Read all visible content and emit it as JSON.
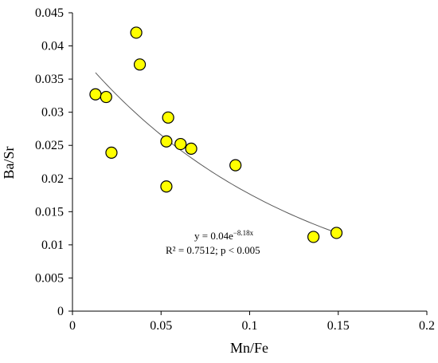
{
  "chart_data": {
    "type": "scatter",
    "xlabel": "Mn/Fe",
    "ylabel": "Ba/Sr",
    "xlim": [
      0,
      0.2
    ],
    "ylim": [
      0,
      0.045
    ],
    "x_ticks": [
      "0",
      "0.05",
      "0.1",
      "0.15",
      "0.2"
    ],
    "y_ticks": [
      "0",
      "0.005",
      "0.01",
      "0.015",
      "0.02",
      "0.025",
      "0.03",
      "0.035",
      "0.04",
      "0.045"
    ],
    "grid": false,
    "legend": "none",
    "points": [
      {
        "x": 0.036,
        "y": 0.042
      },
      {
        "x": 0.038,
        "y": 0.0372
      },
      {
        "x": 0.013,
        "y": 0.0327
      },
      {
        "x": 0.019,
        "y": 0.0323
      },
      {
        "x": 0.022,
        "y": 0.0239
      },
      {
        "x": 0.054,
        "y": 0.0292
      },
      {
        "x": 0.053,
        "y": 0.0256
      },
      {
        "x": 0.061,
        "y": 0.0252
      },
      {
        "x": 0.067,
        "y": 0.0245
      },
      {
        "x": 0.092,
        "y": 0.022
      },
      {
        "x": 0.053,
        "y": 0.0188
      },
      {
        "x": 0.136,
        "y": 0.0112
      },
      {
        "x": 0.149,
        "y": 0.0118
      }
    ],
    "trendline": {
      "type": "exponential",
      "a": 0.04,
      "b": -8.18,
      "x_range": [
        0.013,
        0.149
      ]
    },
    "annotations": {
      "equation_prefix": "y = 0.04e",
      "equation_exponent": "−8.18x",
      "stats": "R² = 0.7512; p < 0.005"
    },
    "colors": {
      "marker_fill": "#ffff00",
      "marker_stroke": "#000000",
      "trendline": "#595959",
      "axis": "#000000"
    }
  }
}
